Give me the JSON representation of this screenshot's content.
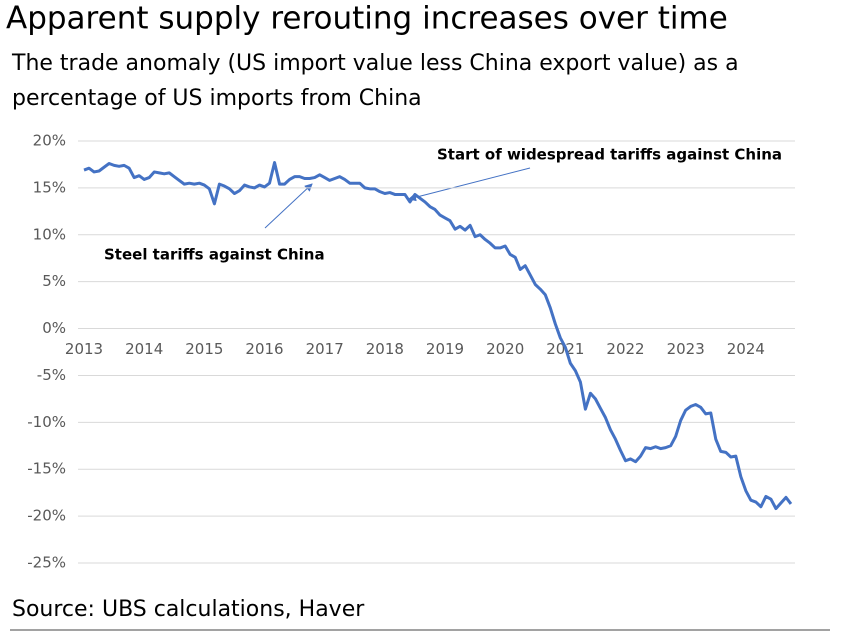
{
  "chart_data": {
    "type": "line",
    "title": "Apparent supply rerouting increases over time",
    "subtitle": [
      "The trade anomaly (US import value less China export value) as a",
      "percentage of US imports from China"
    ],
    "source": "Source: UBS calculations, Haver",
    "annotations": [
      "Steel tariffs against China",
      "Start of widespread tariffs against China"
    ],
    "x": [
      2013,
      2013.083,
      2013.167,
      2013.25,
      2013.333,
      2013.417,
      2013.5,
      2013.583,
      2013.667,
      2013.75,
      2013.833,
      2013.917,
      2014,
      2014.083,
      2014.167,
      2014.25,
      2014.333,
      2014.417,
      2014.5,
      2014.583,
      2014.667,
      2014.75,
      2014.833,
      2014.917,
      2015,
      2015.083,
      2015.167,
      2015.25,
      2015.333,
      2015.417,
      2015.5,
      2015.583,
      2015.667,
      2015.75,
      2015.833,
      2015.917,
      2016,
      2016.083,
      2016.167,
      2016.25,
      2016.333,
      2016.417,
      2016.5,
      2016.583,
      2016.667,
      2016.75,
      2016.833,
      2016.917,
      2017,
      2017.083,
      2017.167,
      2017.25,
      2017.333,
      2017.417,
      2017.5,
      2017.583,
      2017.667,
      2017.75,
      2017.833,
      2017.917,
      2018,
      2018.083,
      2018.167,
      2018.25,
      2018.333,
      2018.417,
      2018.5,
      2018.583,
      2018.667,
      2018.75,
      2018.833,
      2018.917,
      2019,
      2019.083,
      2019.167,
      2019.25,
      2019.333,
      2019.417,
      2019.5,
      2019.583,
      2019.667,
      2019.75,
      2019.833,
      2019.917,
      2020,
      2020.083,
      2020.167,
      2020.25,
      2020.333,
      2020.417,
      2020.5,
      2020.583,
      2020.667,
      2020.75,
      2020.833,
      2020.917,
      2021,
      2021.083,
      2021.167,
      2021.25,
      2021.333,
      2021.417,
      2021.5,
      2021.583,
      2021.667,
      2021.75,
      2021.833,
      2021.917,
      2022,
      2022.083,
      2022.167,
      2022.25,
      2022.333,
      2022.417,
      2022.5,
      2022.583,
      2022.667,
      2022.75,
      2022.833,
      2022.917,
      2023,
      2023.083,
      2023.167,
      2023.25,
      2023.333,
      2023.417,
      2023.5,
      2023.583,
      2023.667,
      2023.75,
      2023.833,
      2023.917,
      2024,
      2024.083,
      2024.167,
      2024.25,
      2024.333,
      2024.417,
      2024.5,
      2024.583,
      2024.667,
      2024.75
    ],
    "series": [
      {
        "name": "Trade anomaly",
        "color": "#4472c4",
        "values": [
          16.9,
          17.1,
          16.7,
          16.8,
          17.2,
          17.6,
          17.4,
          17.3,
          17.4,
          17.1,
          16.1,
          16.3,
          15.9,
          16.1,
          16.7,
          16.6,
          16.5,
          16.6,
          16.2,
          15.8,
          15.4,
          15.5,
          15.4,
          15.5,
          15.3,
          14.9,
          13.3,
          15.4,
          15.2,
          14.9,
          14.4,
          14.7,
          15.3,
          15.1,
          15.0,
          15.3,
          15.1,
          15.5,
          17.7,
          15.4,
          15.4,
          15.9,
          16.2,
          16.2,
          16.0,
          16.0,
          16.1,
          16.4,
          16.1,
          15.8,
          16.0,
          16.2,
          15.9,
          15.5,
          15.5,
          15.5,
          15.0,
          14.9,
          14.9,
          14.6,
          14.4,
          14.5,
          14.3,
          14.3,
          14.3,
          13.5,
          14.3,
          13.9,
          13.5,
          13.0,
          12.7,
          12.1,
          11.8,
          11.5,
          10.6,
          10.9,
          10.5,
          11.0,
          9.8,
          10.0,
          9.5,
          9.1,
          8.6,
          8.6,
          8.8,
          7.9,
          7.6,
          6.3,
          6.7,
          5.7,
          4.7,
          4.2,
          3.6,
          2.2,
          0.5,
          -1.0,
          -2.0,
          -3.7,
          -4.5,
          -5.7,
          -8.6,
          -6.9,
          -7.5,
          -8.5,
          -9.5,
          -10.8,
          -11.8,
          -13.0,
          -14.1,
          -13.9,
          -14.2,
          -13.6,
          -12.7,
          -12.8,
          -12.6,
          -12.8,
          -12.7,
          -12.5,
          -11.5,
          -9.8,
          -8.7,
          -8.3,
          -8.1,
          -8.4,
          -9.1,
          -9.0,
          -11.8,
          -13.1,
          -13.2,
          -13.7,
          -13.6,
          -15.8,
          -17.3,
          -18.3,
          -18.5,
          -19.0,
          -17.9,
          -18.2,
          -19.2,
          -18.6,
          -18.0,
          -18.7
        ]
      }
    ],
    "xlim": [
      2012.9,
      2024.9
    ],
    "xticks": [
      2013,
      2014,
      2015,
      2016,
      2017,
      2018,
      2019,
      2020,
      2021,
      2022,
      2023,
      2024
    ],
    "ylim": [
      -25,
      20
    ],
    "yticks": [
      {
        "value": 20,
        "label": "20%"
      },
      {
        "value": 15,
        "label": "15%"
      },
      {
        "value": 10,
        "label": "10%"
      },
      {
        "value": 5,
        "label": "5%"
      },
      {
        "value": 0,
        "label": "0%"
      },
      {
        "value": -5,
        "label": "-5%"
      },
      {
        "value": -10,
        "label": "-10%"
      },
      {
        "value": -15,
        "label": "-15%"
      },
      {
        "value": -20,
        "label": "-20%"
      },
      {
        "value": -25,
        "label": "-25%"
      }
    ],
    "grid": true
  }
}
